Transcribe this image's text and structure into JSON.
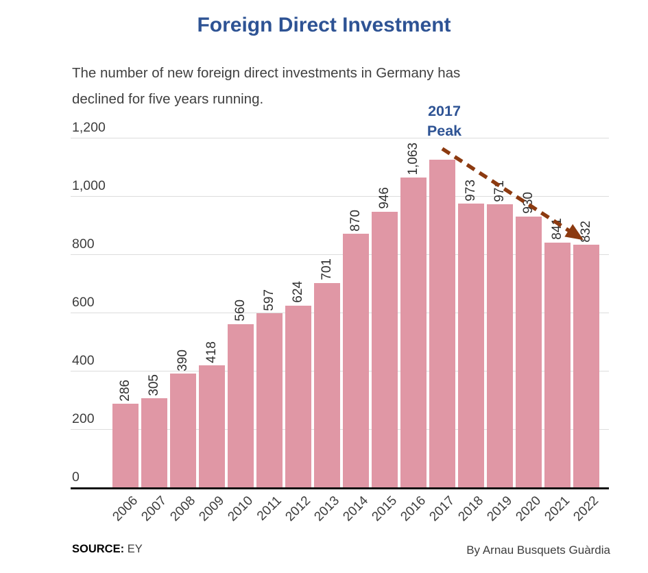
{
  "header": {
    "title": "Foreign Direct Investment",
    "subtitle_line1": "The number of new foreign direct investments in Germany has",
    "subtitle_line2": "declined for five years running."
  },
  "annotation": {
    "line1": "2017",
    "line2": "Peak"
  },
  "footer": {
    "source_label": "SOURCE:",
    "source_value": "EY",
    "byline": "By Arnau Busquets Guàrdia"
  },
  "colors": {
    "title_blue": "#2e5394",
    "annotation_blue": "#2e5394",
    "bar_pink": "#e097a5",
    "arrow_brown": "#8c3a10",
    "axis_black": "#111111",
    "gridline_gray": "#dcdcdc",
    "label_gray": "#3d3d3d"
  },
  "chart_data": {
    "type": "bar",
    "title": "Foreign Direct Investment",
    "subtitle": "The number of new foreign direct investments in Germany has declined for five years running.",
    "categories": [
      "2006",
      "2007",
      "2008",
      "2009",
      "2010",
      "2011",
      "2012",
      "2013",
      "2014",
      "2015",
      "2016",
      "2017",
      "2018",
      "2019",
      "2020",
      "2021",
      "2022"
    ],
    "values": [
      286,
      305,
      390,
      418,
      560,
      597,
      624,
      701,
      870,
      946,
      1063,
      1124,
      973,
      971,
      930,
      841,
      832
    ],
    "bar_labels": [
      "286",
      "305",
      "390",
      "418",
      "560",
      "597",
      "624",
      "701",
      "870",
      "946",
      "1,063",
      null,
      "973",
      "971",
      "930",
      "841",
      "832"
    ],
    "y_ticks": [
      {
        "value": 0,
        "label": "0"
      },
      {
        "value": 200,
        "label": "200"
      },
      {
        "value": 400,
        "label": "400"
      },
      {
        "value": 600,
        "label": "600"
      },
      {
        "value": 800,
        "label": "800"
      },
      {
        "value": 1000,
        "label": "1,000"
      },
      {
        "value": 1200,
        "label": "1,200"
      }
    ],
    "xlabel": "",
    "ylabel": "",
    "ylim": [
      0,
      1200
    ],
    "grid": "horizontal",
    "legend": "none",
    "annotation": "2017 Peak (arrow showing decline from 2017 to 2022)",
    "unlabeled_peak_value_estimated": 1124,
    "source": "EY",
    "byline": "By Arnau Busquets Guàrdia"
  }
}
